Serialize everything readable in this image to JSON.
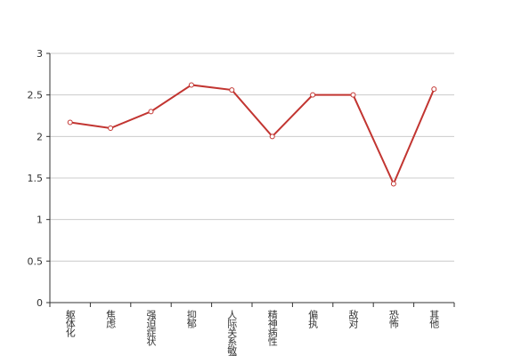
{
  "chart_data": {
    "type": "line",
    "categories": [
      "躯体化",
      "焦虑",
      "强迫症状",
      "抑郁",
      "人际关系敏感",
      "精神病性",
      "偏执",
      "敌对",
      "恐怖",
      "其他"
    ],
    "values": [
      2.17,
      2.1,
      2.3,
      2.62,
      2.56,
      2.0,
      2.5,
      2.5,
      1.43,
      2.57
    ],
    "color": "#c23531",
    "ylim": [
      0,
      3
    ],
    "yticks": [
      0,
      {
        "value": 0.5,
        "label": "0.5"
      },
      1,
      {
        "value": 1.5,
        "label": "1.5"
      },
      2,
      {
        "value": 2.5,
        "label": "2.5"
      },
      3
    ],
    "grid": true
  }
}
